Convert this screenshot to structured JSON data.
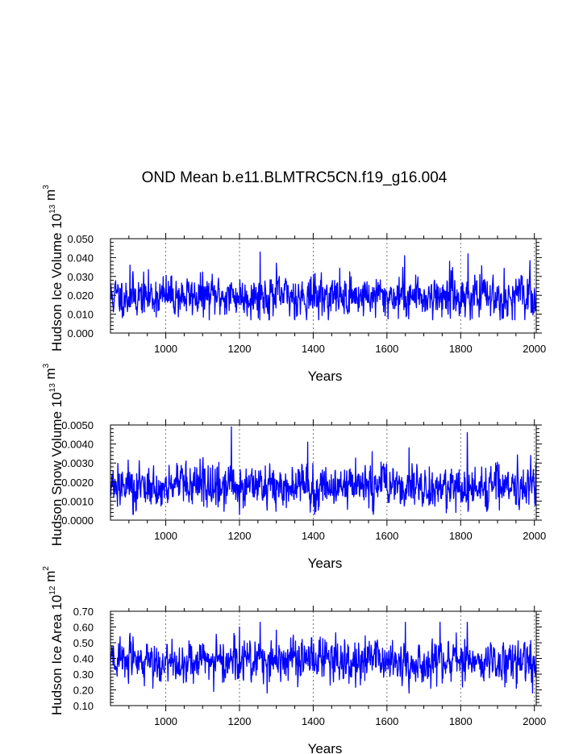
{
  "chart_data": [
    {
      "type": "line",
      "title": "OND Mean b.e11.BLMTRC5CN.f19_g16.004",
      "xlabel": "Years",
      "ylabel": {
        "name": "Hudson Ice Volume",
        "base": "10",
        "exp": "13",
        "unit": "m",
        "unit_exp": "3"
      },
      "xlim": [
        850,
        2005
      ],
      "ylim": [
        0.0,
        0.05
      ],
      "xticks": [
        "1000",
        "1200",
        "1400",
        "1600",
        "1800",
        "2000"
      ],
      "yticks": [
        "0.000",
        "0.010",
        "0.020",
        "0.030",
        "0.040",
        "0.050"
      ],
      "grid_x": [
        1000,
        1200,
        1400,
        1600,
        1800,
        2000
      ],
      "color": "#0000ff",
      "series": {
        "name": "Hudson Ice Volume",
        "mean": 0.0195,
        "sd": 0.0052,
        "min": 0.007,
        "max": 0.043,
        "seed": 11,
        "peaks": [
          [
            1256,
            0.043
          ],
          [
            1648,
            0.041
          ],
          [
            1820,
            0.042
          ],
          [
            1770,
            0.038
          ],
          [
            1300,
            0.037
          ],
          [
            903,
            0.036
          ],
          [
            1940,
            0.007
          ]
        ]
      }
    },
    {
      "type": "line",
      "title": "",
      "xlabel": "Years",
      "ylabel": {
        "name": "Hudson Snow Volume",
        "base": "10",
        "exp": "13",
        "unit": "m",
        "unit_exp": "3"
      },
      "xlim": [
        850,
        2005
      ],
      "ylim": [
        0.0,
        0.005
      ],
      "xticks": [
        "1000",
        "1200",
        "1400",
        "1600",
        "1800",
        "2000"
      ],
      "yticks": [
        "0.0000",
        "0.0010",
        "0.0020",
        "0.0030",
        "0.0040",
        "0.0050"
      ],
      "grid_x": [
        1000,
        1200,
        1400,
        1600,
        1800,
        2000
      ],
      "color": "#0000ff",
      "series": {
        "name": "Hudson Snow Volume",
        "mean": 0.00175,
        "sd": 0.00055,
        "min": 0.0003,
        "max": 0.005,
        "seed": 27,
        "peaks": [
          [
            1178,
            0.0049
          ],
          [
            1818,
            0.0046
          ],
          [
            1385,
            0.0041
          ],
          [
            1660,
            0.0038
          ],
          [
            1560,
            0.0036
          ],
          [
            1990,
            0.0034
          ],
          [
            1200,
            0.0003
          ]
        ]
      }
    },
    {
      "type": "line",
      "title": "",
      "xlabel": "Years",
      "ylabel": {
        "name": "Hudson Ice Area",
        "base": "10",
        "exp": "12",
        "unit": "m",
        "unit_exp": "2"
      },
      "xlim": [
        850,
        2005
      ],
      "ylim": [
        0.1,
        0.7
      ],
      "xticks": [
        "1000",
        "1200",
        "1400",
        "1600",
        "1800",
        "2000"
      ],
      "yticks": [
        "0.10",
        "0.20",
        "0.30",
        "0.40",
        "0.50",
        "0.60",
        "0.70"
      ],
      "grid_x": [
        1000,
        1200,
        1400,
        1600,
        1800,
        2000
      ],
      "color": "#0000ff",
      "series": {
        "name": "Hudson Ice Area",
        "mean": 0.385,
        "sd": 0.065,
        "min": 0.18,
        "max": 0.63,
        "seed": 43,
        "peaks": [
          [
            1256,
            0.63
          ],
          [
            1650,
            0.63
          ],
          [
            1818,
            0.63
          ],
          [
            1300,
            0.58
          ],
          [
            1200,
            0.6
          ],
          [
            903,
            0.56
          ],
          [
            1995,
            0.18
          ]
        ]
      }
    }
  ]
}
